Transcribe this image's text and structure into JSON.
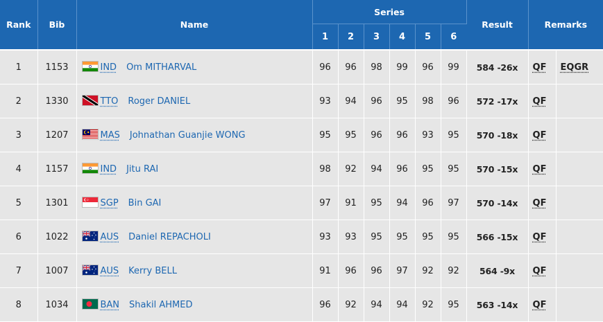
{
  "headers": {
    "rank": "Rank",
    "bib": "Bib",
    "name": "Name",
    "series": "Series",
    "series_numbers": [
      "1",
      "2",
      "3",
      "4",
      "5",
      "6"
    ],
    "result": "Result",
    "remarks": "Remarks"
  },
  "rows": [
    {
      "rank": "1",
      "bib": "1153",
      "noc": "IND",
      "flag": "india-flag-icon",
      "name": "Om MITHARVAL",
      "series": [
        "96",
        "96",
        "98",
        "99",
        "96",
        "99"
      ],
      "result": "584 -26x",
      "qual": "QF",
      "remark": "EQGR"
    },
    {
      "rank": "2",
      "bib": "1330",
      "noc": "TTO",
      "flag": "trinidad-and-tobago-flag-icon",
      "name": "Roger DANIEL",
      "series": [
        "93",
        "94",
        "96",
        "95",
        "98",
        "96"
      ],
      "result": "572 -17x",
      "qual": "QF",
      "remark": ""
    },
    {
      "rank": "3",
      "bib": "1207",
      "noc": "MAS",
      "flag": "malaysia-flag-icon",
      "name": "Johnathan Guanjie WONG",
      "series": [
        "95",
        "95",
        "96",
        "96",
        "93",
        "95"
      ],
      "result": "570 -18x",
      "qual": "QF",
      "remark": ""
    },
    {
      "rank": "4",
      "bib": "1157",
      "noc": "IND",
      "flag": "india-flag-icon",
      "name": "Jitu RAI",
      "series": [
        "98",
        "92",
        "94",
        "96",
        "95",
        "95"
      ],
      "result": "570 -15x",
      "qual": "QF",
      "remark": ""
    },
    {
      "rank": "5",
      "bib": "1301",
      "noc": "SGP",
      "flag": "singapore-flag-icon",
      "name": "Bin GAI",
      "series": [
        "97",
        "91",
        "95",
        "94",
        "96",
        "97"
      ],
      "result": "570 -14x",
      "qual": "QF",
      "remark": ""
    },
    {
      "rank": "6",
      "bib": "1022",
      "noc": "AUS",
      "flag": "australia-flag-icon",
      "name": "Daniel REPACHOLI",
      "series": [
        "93",
        "93",
        "95",
        "95",
        "95",
        "95"
      ],
      "result": "566 -15x",
      "qual": "QF",
      "remark": ""
    },
    {
      "rank": "7",
      "bib": "1007",
      "noc": "AUS",
      "flag": "australia-flag-icon",
      "name": "Kerry BELL",
      "series": [
        "91",
        "96",
        "96",
        "97",
        "92",
        "92"
      ],
      "result": "564 -9x",
      "qual": "QF",
      "remark": ""
    },
    {
      "rank": "8",
      "bib": "1034",
      "noc": "BAN",
      "flag": "bangladesh-flag-icon",
      "name": "Shakil AHMED",
      "series": [
        "96",
        "92",
        "94",
        "94",
        "92",
        "95"
      ],
      "result": "563 -14x",
      "qual": "QF",
      "remark": ""
    }
  ],
  "colors": {
    "header_bg": "#1d67b1",
    "row_bg": "#e6e6e6",
    "link": "#1d67b1"
  }
}
